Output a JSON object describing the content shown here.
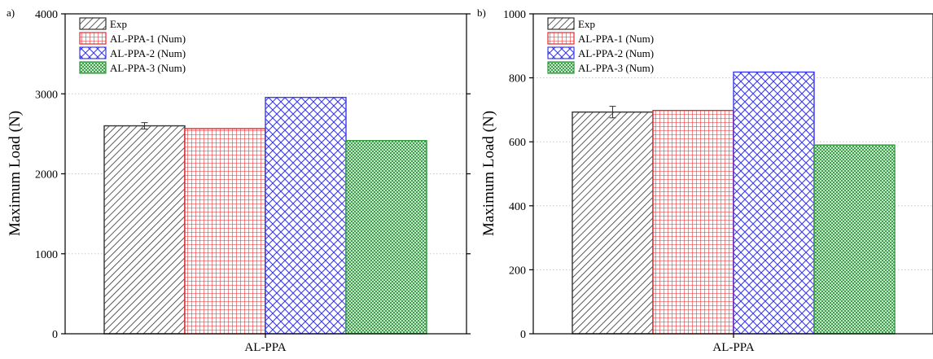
{
  "chart_data": [
    {
      "panel_label": "a)",
      "type": "bar",
      "categories": [
        "AL-PPA"
      ],
      "ylabel": "Maximum Load (N)",
      "xlabel": "",
      "ylim": [
        0,
        4000
      ],
      "yticks": [
        0,
        1000,
        2000,
        3000,
        4000
      ],
      "grid": "horizontal-dotted",
      "legend_position": "top-left",
      "series": [
        {
          "name": "Exp",
          "values": [
            2600
          ],
          "error": [
            40
          ],
          "color": "#333333",
          "pattern": "diag"
        },
        {
          "name": "AL-PPA-1 (Num)",
          "values": [
            2565
          ],
          "color": "#e8262a",
          "pattern": "grid"
        },
        {
          "name": "AL-PPA-2 (Num)",
          "values": [
            2955
          ],
          "color": "#3a3af0",
          "pattern": "cross"
        },
        {
          "name": "AL-PPA-3 (Num)",
          "values": [
            2415
          ],
          "color": "#2e9a3c",
          "pattern": "fine"
        }
      ]
    },
    {
      "panel_label": "b)",
      "type": "bar",
      "categories": [
        "AL-PPA"
      ],
      "ylabel": "Maximum Load (N)",
      "xlabel": "",
      "ylim": [
        0,
        1000
      ],
      "yticks": [
        0,
        200,
        400,
        600,
        800,
        1000
      ],
      "grid": "horizontal-dotted",
      "legend_position": "top-left",
      "series": [
        {
          "name": "Exp",
          "values": [
            693
          ],
          "error": [
            18
          ],
          "color": "#333333",
          "pattern": "diag"
        },
        {
          "name": "AL-PPA-1 (Num)",
          "values": [
            698
          ],
          "color": "#e8262a",
          "pattern": "grid"
        },
        {
          "name": "AL-PPA-2 (Num)",
          "values": [
            818
          ],
          "color": "#3a3af0",
          "pattern": "cross"
        },
        {
          "name": "AL-PPA-3 (Num)",
          "values": [
            590
          ],
          "color": "#2e9a3c",
          "pattern": "fine"
        }
      ]
    }
  ]
}
